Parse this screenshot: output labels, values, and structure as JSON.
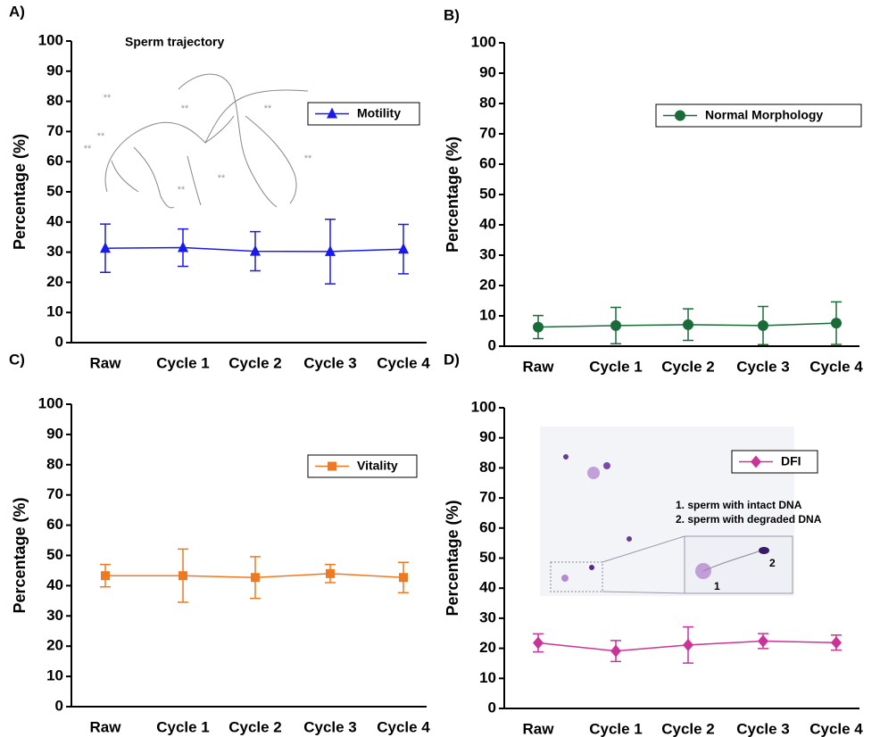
{
  "chart_data": [
    {
      "type": "line",
      "panel": "A)",
      "inset_title": "Sperm trajectory",
      "annotations": [
        "**",
        "**",
        "**",
        "**",
        "**",
        "**",
        "**",
        "**"
      ],
      "ylabel": "Percentage (%)",
      "ylim": [
        0,
        100
      ],
      "yticks": [
        0,
        10,
        20,
        30,
        40,
        50,
        60,
        70,
        80,
        90,
        100
      ],
      "categories": [
        "Raw",
        "Cycle 1",
        "Cycle 2",
        "Cycle 3",
        "Cycle 4"
      ],
      "legend": "upper right",
      "series": [
        {
          "name": "Motility",
          "color": "#1a1aee",
          "marker": "triangle",
          "values": [
            31.3,
            31.5,
            30.3,
            30.2,
            31.0
          ],
          "errors": [
            8.0,
            6.2,
            6.5,
            10.7,
            8.2
          ]
        }
      ]
    },
    {
      "type": "line",
      "panel": "B)",
      "ylabel": "Percentage (%)",
      "ylim": [
        0,
        100
      ],
      "yticks": [
        0,
        10,
        20,
        30,
        40,
        50,
        60,
        70,
        80,
        90,
        100
      ],
      "categories": [
        "Raw",
        "Cycle 1",
        "Cycle 2",
        "Cycle 3",
        "Cycle 4"
      ],
      "legend": "upper right",
      "series": [
        {
          "name": "Normal Morphology",
          "color": "#1a6b3a",
          "marker": "circle",
          "values": [
            6.3,
            6.8,
            7.1,
            6.8,
            7.6
          ],
          "errors": [
            3.8,
            6.0,
            5.2,
            6.3,
            7.0
          ]
        }
      ]
    },
    {
      "type": "line",
      "panel": "C)",
      "ylabel": "Percentage (%)",
      "ylim": [
        0,
        100
      ],
      "yticks": [
        0,
        10,
        20,
        30,
        40,
        50,
        60,
        70,
        80,
        90,
        100
      ],
      "categories": [
        "Raw",
        "Cycle 1",
        "Cycle 2",
        "Cycle 3",
        "Cycle 4"
      ],
      "legend": "upper right",
      "series": [
        {
          "name": "Vitality",
          "color": "#f07820",
          "marker": "square",
          "values": [
            43.3,
            43.3,
            42.7,
            44.0,
            42.7
          ],
          "errors": [
            3.7,
            8.8,
            6.9,
            3.0,
            5.0
          ]
        }
      ]
    },
    {
      "type": "line",
      "panel": "D)",
      "annotations": [
        "1. sperm with intact DNA",
        "2. sperm with degraded DNA",
        "1",
        "2"
      ],
      "ylabel": "Percentage (%)",
      "ylim": [
        0,
        100
      ],
      "yticks": [
        0,
        10,
        20,
        30,
        40,
        50,
        60,
        70,
        80,
        90,
        100
      ],
      "categories": [
        "Raw",
        "Cycle 1",
        "Cycle 2",
        "Cycle 3",
        "Cycle 4"
      ],
      "legend": "upper right",
      "series": [
        {
          "name": "DFI",
          "color": "#cc3399",
          "marker": "diamond",
          "values": [
            21.8,
            19.1,
            21.1,
            22.4,
            21.9
          ],
          "errors": [
            3.0,
            3.5,
            6.0,
            2.5,
            2.5
          ]
        }
      ]
    }
  ]
}
